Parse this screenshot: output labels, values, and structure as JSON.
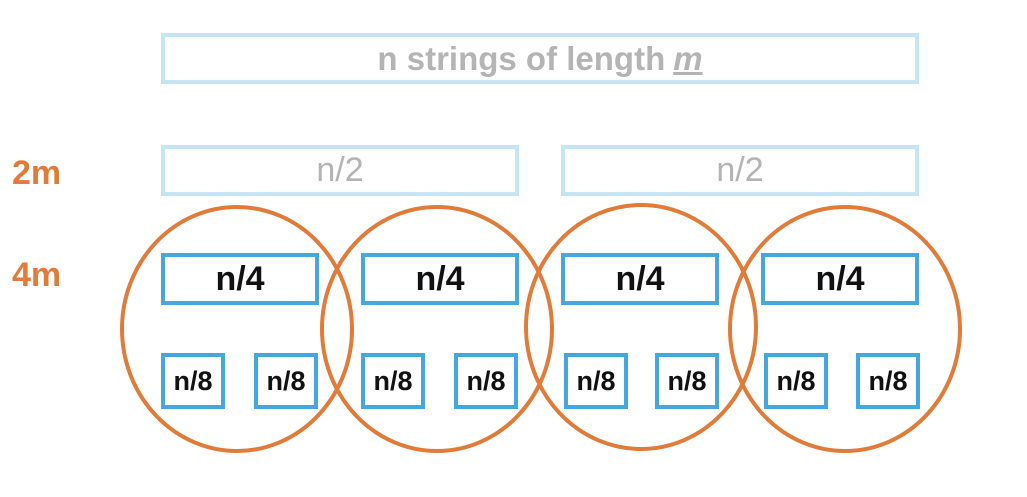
{
  "title": {
    "prefix": "n strings of length",
    "variable": "m"
  },
  "levels": {
    "level_2m": "2m",
    "level_4m": "4m"
  },
  "halves": [
    "n/2",
    "n/2"
  ],
  "quarters": [
    "n/4",
    "n/4",
    "n/4",
    "n/4"
  ],
  "eighths": [
    "n/8",
    "n/8",
    "n/8",
    "n/8",
    "n/8",
    "n/8",
    "n/8",
    "n/8"
  ],
  "colors": {
    "light_blue": "#c5e5f6",
    "blue": "#42a8df",
    "orange": "#e07b39",
    "gray_text": "#b4b4b4"
  }
}
